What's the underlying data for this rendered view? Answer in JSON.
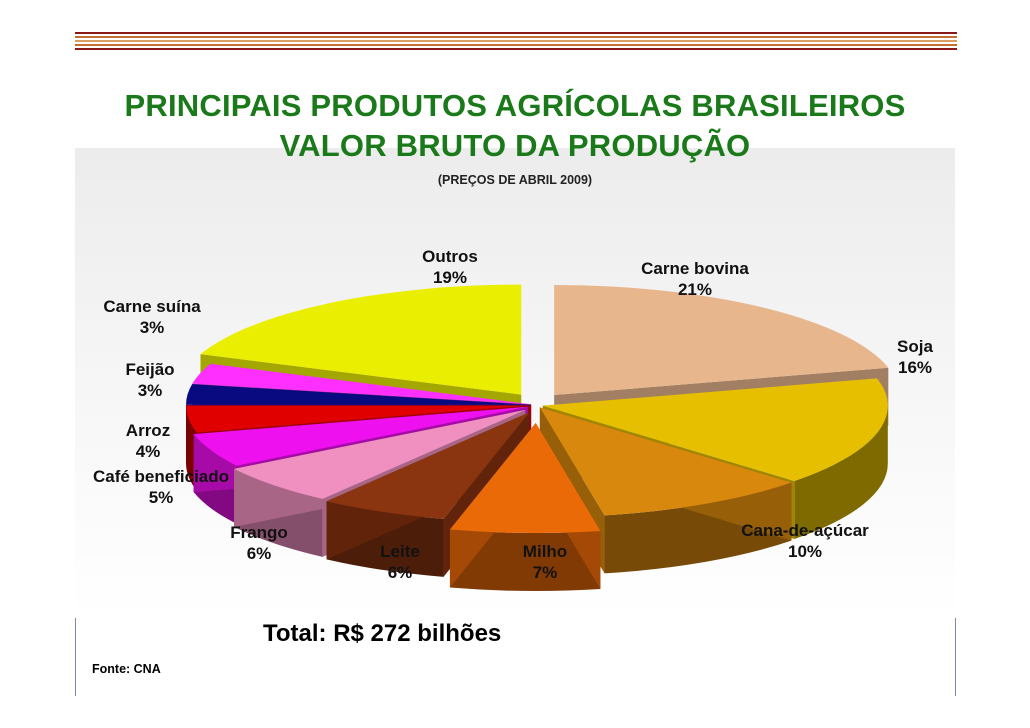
{
  "title_line1": "PRINCIPAIS PRODUTOS AGRÍCOLAS BRASILEIROS",
  "title_line2": "VALOR BRUTO DA PRODUÇÃO",
  "subtitle": "(PREÇOS DE ABRIL 2009)",
  "total": "Total: R$ 272 bilhões",
  "source": "Fonte: CNA",
  "chart_data": {
    "type": "pie",
    "title": "PRINCIPAIS PRODUTOS AGRÍCOLAS BRASILEIROS VALOR BRUTO DA PRODUÇÃO",
    "subtitle": "(PREÇOS DE ABRIL 2009)",
    "legend": "none",
    "slices": [
      {
        "label": "Carne bovina",
        "value": 21,
        "text": "21%",
        "color": "#e8b68c"
      },
      {
        "label": "Soja",
        "value": 16,
        "text": "16%",
        "color": "#e6c000"
      },
      {
        "label": "Cana-de-açúcar",
        "value": 10,
        "text": "10%",
        "color": "#d8880c"
      },
      {
        "label": "Milho",
        "value": 7,
        "text": "7%",
        "color": "#ea6a08"
      },
      {
        "label": "Leite",
        "value": 6,
        "text": "6%",
        "color": "#8a3410"
      },
      {
        "label": "Frango",
        "value": 6,
        "text": "6%",
        "color": "#f090c0"
      },
      {
        "label": "Café beneficiado",
        "value": 5,
        "text": "5%",
        "color": "#ee10ee"
      },
      {
        "label": "Arroz",
        "value": 4,
        "text": "4%",
        "color": "#e00000"
      },
      {
        "label": "Feijão",
        "value": 3,
        "text": "3%",
        "color": "#0a0a80"
      },
      {
        "label": "Carne suína",
        "value": 3,
        "text": "3%",
        "color": "#ff30ff"
      },
      {
        "label": "Outros",
        "value": 19,
        "text": "19%",
        "color": "#eaee00"
      }
    ]
  }
}
